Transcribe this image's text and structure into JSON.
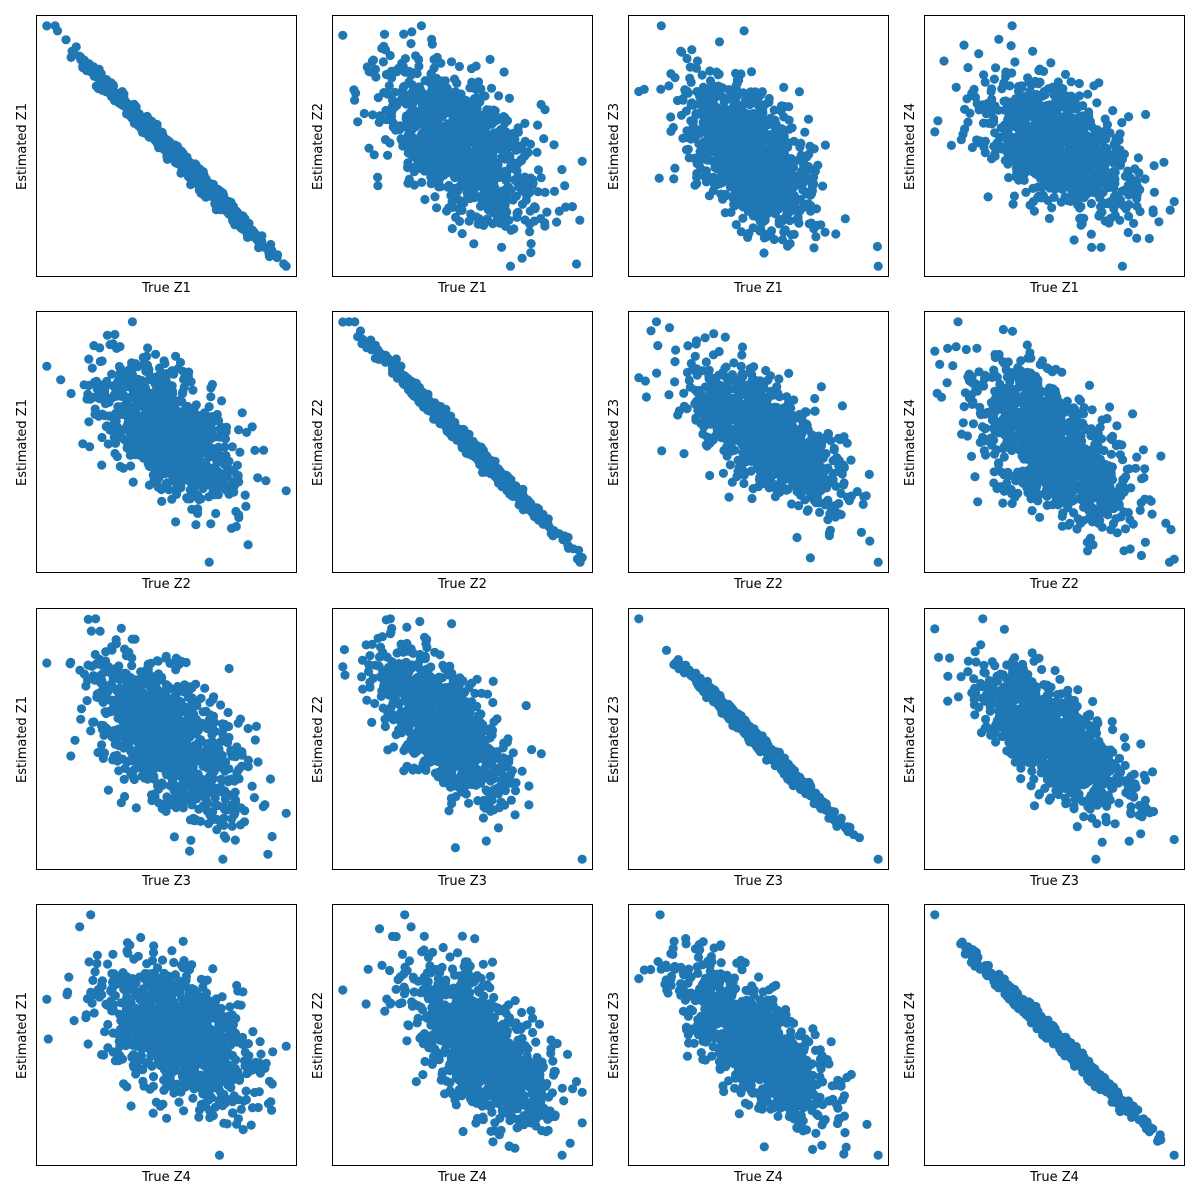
{
  "figure": {
    "point_color": "#1f77b4",
    "background": "#ffffff",
    "rows": 4,
    "cols": 4,
    "points_per_panel": 1000
  },
  "chart_data": [
    {
      "type": "scatter",
      "xlabel": "True Z1",
      "ylabel": "Estimated Z1",
      "correlation": -0.995,
      "x_ticks": [],
      "y_ticks": [],
      "grid": false,
      "legend": "none"
    },
    {
      "type": "scatter",
      "xlabel": "True Z1",
      "ylabel": "Estimated Z2",
      "correlation": -0.55,
      "x_ticks": [],
      "y_ticks": [],
      "grid": false,
      "legend": "none"
    },
    {
      "type": "scatter",
      "xlabel": "True Z1",
      "ylabel": "Estimated Z3",
      "correlation": -0.55,
      "x_ticks": [],
      "y_ticks": [],
      "grid": false,
      "legend": "none"
    },
    {
      "type": "scatter",
      "xlabel": "True Z1",
      "ylabel": "Estimated Z4",
      "correlation": -0.5,
      "x_ticks": [],
      "y_ticks": [],
      "grid": false,
      "legend": "none"
    },
    {
      "type": "scatter",
      "xlabel": "True Z2",
      "ylabel": "Estimated Z1",
      "correlation": -0.55,
      "x_ticks": [],
      "y_ticks": [],
      "grid": false,
      "legend": "none"
    },
    {
      "type": "scatter",
      "xlabel": "True Z2",
      "ylabel": "Estimated Z2",
      "correlation": -0.995,
      "x_ticks": [],
      "y_ticks": [],
      "grid": false,
      "legend": "none"
    },
    {
      "type": "scatter",
      "xlabel": "True Z2",
      "ylabel": "Estimated Z3",
      "correlation": -0.65,
      "x_ticks": [],
      "y_ticks": [],
      "grid": false,
      "legend": "none"
    },
    {
      "type": "scatter",
      "xlabel": "True Z2",
      "ylabel": "Estimated Z4",
      "correlation": -0.6,
      "x_ticks": [],
      "y_ticks": [],
      "grid": false,
      "legend": "none"
    },
    {
      "type": "scatter",
      "xlabel": "True Z3",
      "ylabel": "Estimated Z1",
      "correlation": -0.55,
      "x_ticks": [],
      "y_ticks": [],
      "grid": false,
      "legend": "none"
    },
    {
      "type": "scatter",
      "xlabel": "True Z3",
      "ylabel": "Estimated Z2",
      "correlation": -0.65,
      "x_ticks": [],
      "y_ticks": [],
      "grid": false,
      "legend": "none"
    },
    {
      "type": "scatter",
      "xlabel": "True Z3",
      "ylabel": "Estimated Z3",
      "correlation": -0.995,
      "x_ticks": [],
      "y_ticks": [],
      "grid": false,
      "legend": "none"
    },
    {
      "type": "scatter",
      "xlabel": "True Z3",
      "ylabel": "Estimated Z4",
      "correlation": -0.7,
      "x_ticks": [],
      "y_ticks": [],
      "grid": false,
      "legend": "none"
    },
    {
      "type": "scatter",
      "xlabel": "True Z4",
      "ylabel": "Estimated Z1",
      "correlation": -0.5,
      "x_ticks": [],
      "y_ticks": [],
      "grid": false,
      "legend": "none"
    },
    {
      "type": "scatter",
      "xlabel": "True Z4",
      "ylabel": "Estimated Z2",
      "correlation": -0.6,
      "x_ticks": [],
      "y_ticks": [],
      "grid": false,
      "legend": "none"
    },
    {
      "type": "scatter",
      "xlabel": "True Z4",
      "ylabel": "Estimated Z3",
      "correlation": -0.7,
      "x_ticks": [],
      "y_ticks": [],
      "grid": false,
      "legend": "none"
    },
    {
      "type": "scatter",
      "xlabel": "True Z4",
      "ylabel": "Estimated Z4",
      "correlation": -0.995,
      "x_ticks": [],
      "y_ticks": [],
      "grid": false,
      "legend": "none"
    }
  ]
}
